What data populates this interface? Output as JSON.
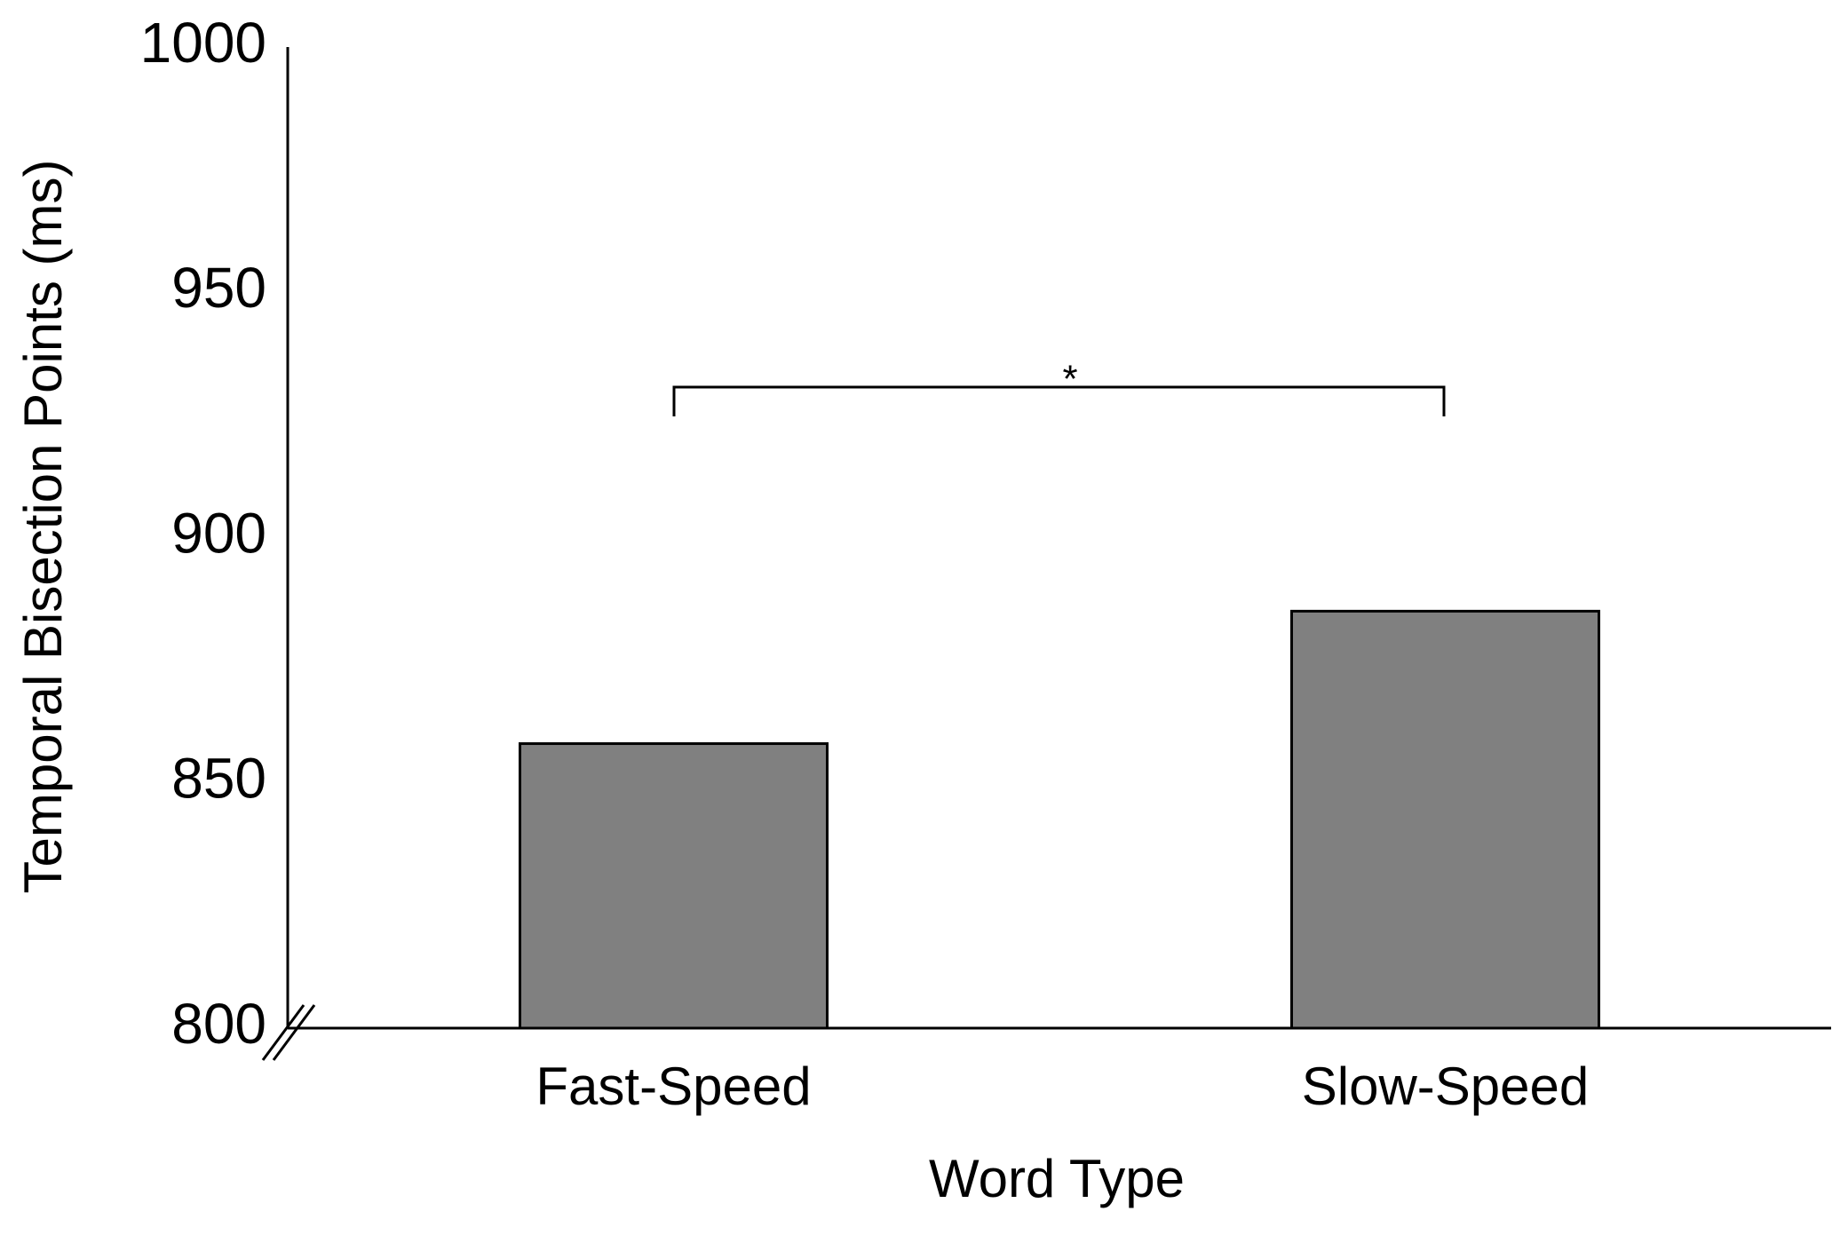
{
  "chart_data": {
    "type": "bar",
    "x_label": "Word Type",
    "y_label": "Temporal Bisection Points (ms)",
    "categories": [
      "Fast-Speed",
      "Slow-Speed"
    ],
    "values": [
      858,
      885
    ],
    "color": "#808080",
    "ylim": [
      800,
      1000
    ],
    "yticks": [
      800,
      850,
      900,
      950,
      1000
    ],
    "grid": false,
    "annotation": "*"
  }
}
